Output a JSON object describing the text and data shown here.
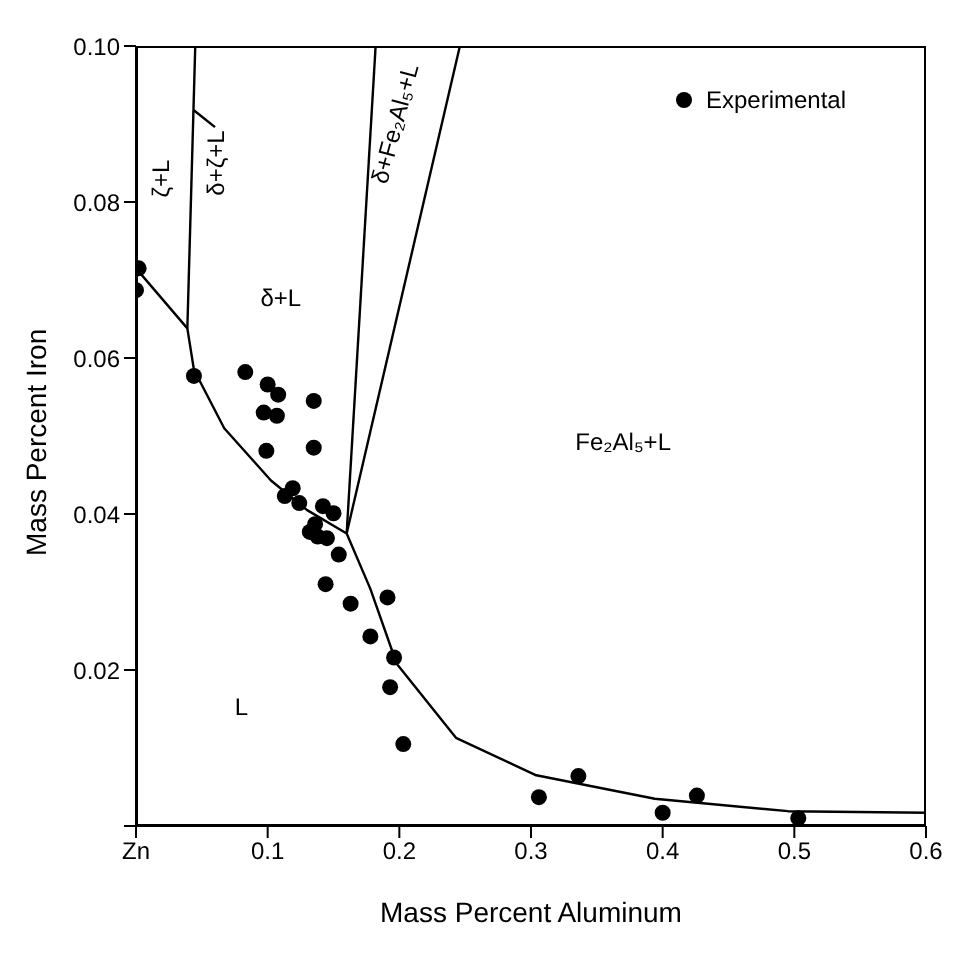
{
  "chart_data": {
    "type": "scatter",
    "xlabel": "Mass Percent Aluminum",
    "ylabel": "Mass Percent Iron",
    "xlim": [
      0,
      0.6
    ],
    "xticks": [
      {
        "value": 0,
        "label": "Zn"
      },
      0.1,
      0.2,
      0.3,
      0.4,
      0.5,
      0.6
    ],
    "ylim": [
      0,
      0.1
    ],
    "yticks": [
      {
        "value": 0,
        "label": null
      },
      0.02,
      0.04,
      0.06,
      0.08,
      {
        "value": 0.1,
        "label": "0.10"
      }
    ],
    "grid": false,
    "legend": "top right",
    "marker": "circle",
    "series": [
      {
        "name": "Experimental",
        "color": "#000000",
        "x": [
          0.002,
          0.0,
          0.044,
          0.083,
          0.1,
          0.108,
          0.097,
          0.107,
          0.135,
          0.099,
          0.135,
          0.119,
          0.113,
          0.124,
          0.142,
          0.15,
          0.132,
          0.138,
          0.145,
          0.136,
          0.154,
          0.144,
          0.163,
          0.191,
          0.178,
          0.196,
          0.193,
          0.203,
          0.306,
          0.336,
          0.4,
          0.426,
          0.503
        ],
        "values": [
          0.0715,
          0.0687,
          0.0577,
          0.0582,
          0.0566,
          0.0553,
          0.053,
          0.0526,
          0.0545,
          0.0481,
          0.0485,
          0.0433,
          0.0423,
          0.0414,
          0.041,
          0.0401,
          0.0377,
          0.0371,
          0.0369,
          0.0387,
          0.0348,
          0.031,
          0.0285,
          0.0293,
          0.0243,
          0.0216,
          0.0178,
          0.0105,
          0.0037,
          0.0064,
          0.0017,
          0.0039,
          0.001
        ]
      },
      {
        "type": "line",
        "color": "#000000",
        "marker": "none",
        "x": [
          0.0,
          0.039,
          0.044,
          0.067,
          0.1025,
          0.13,
          0.16,
          0.178,
          0.198,
          0.243,
          0.304,
          0.394,
          0.495,
          0.6
        ],
        "values": [
          0.0715,
          0.0638,
          0.0585,
          0.051,
          0.0443,
          0.0405,
          0.0375,
          0.0304,
          0.0208,
          0.0113,
          0.0065,
          0.0035,
          0.0019,
          0.0017
        ]
      },
      {
        "type": "line",
        "color": "#000000",
        "marker": "none",
        "x": [
          0.039,
          0.045
        ],
        "values": [
          0.0638,
          0.1
        ]
      },
      {
        "type": "line",
        "color": "#000000",
        "marker": "none",
        "x": [
          0.0437,
          0.06
        ],
        "values": [
          0.0918,
          0.0896
        ]
      },
      {
        "type": "line",
        "color": "#000000",
        "marker": "none",
        "x": [
          0.16,
          0.182
        ],
        "values": [
          0.0375,
          0.1
        ]
      },
      {
        "type": "line",
        "color": "#000000",
        "marker": "none",
        "x": [
          0.16,
          0.246
        ],
        "values": [
          0.0375,
          0.1
        ]
      }
    ],
    "annotations": [
      "ζ+L",
      "δ+ζ+L",
      "δ+L",
      "δ+Fe₂Al₅+L",
      "Fe₂Al₅+L",
      "L"
    ]
  }
}
